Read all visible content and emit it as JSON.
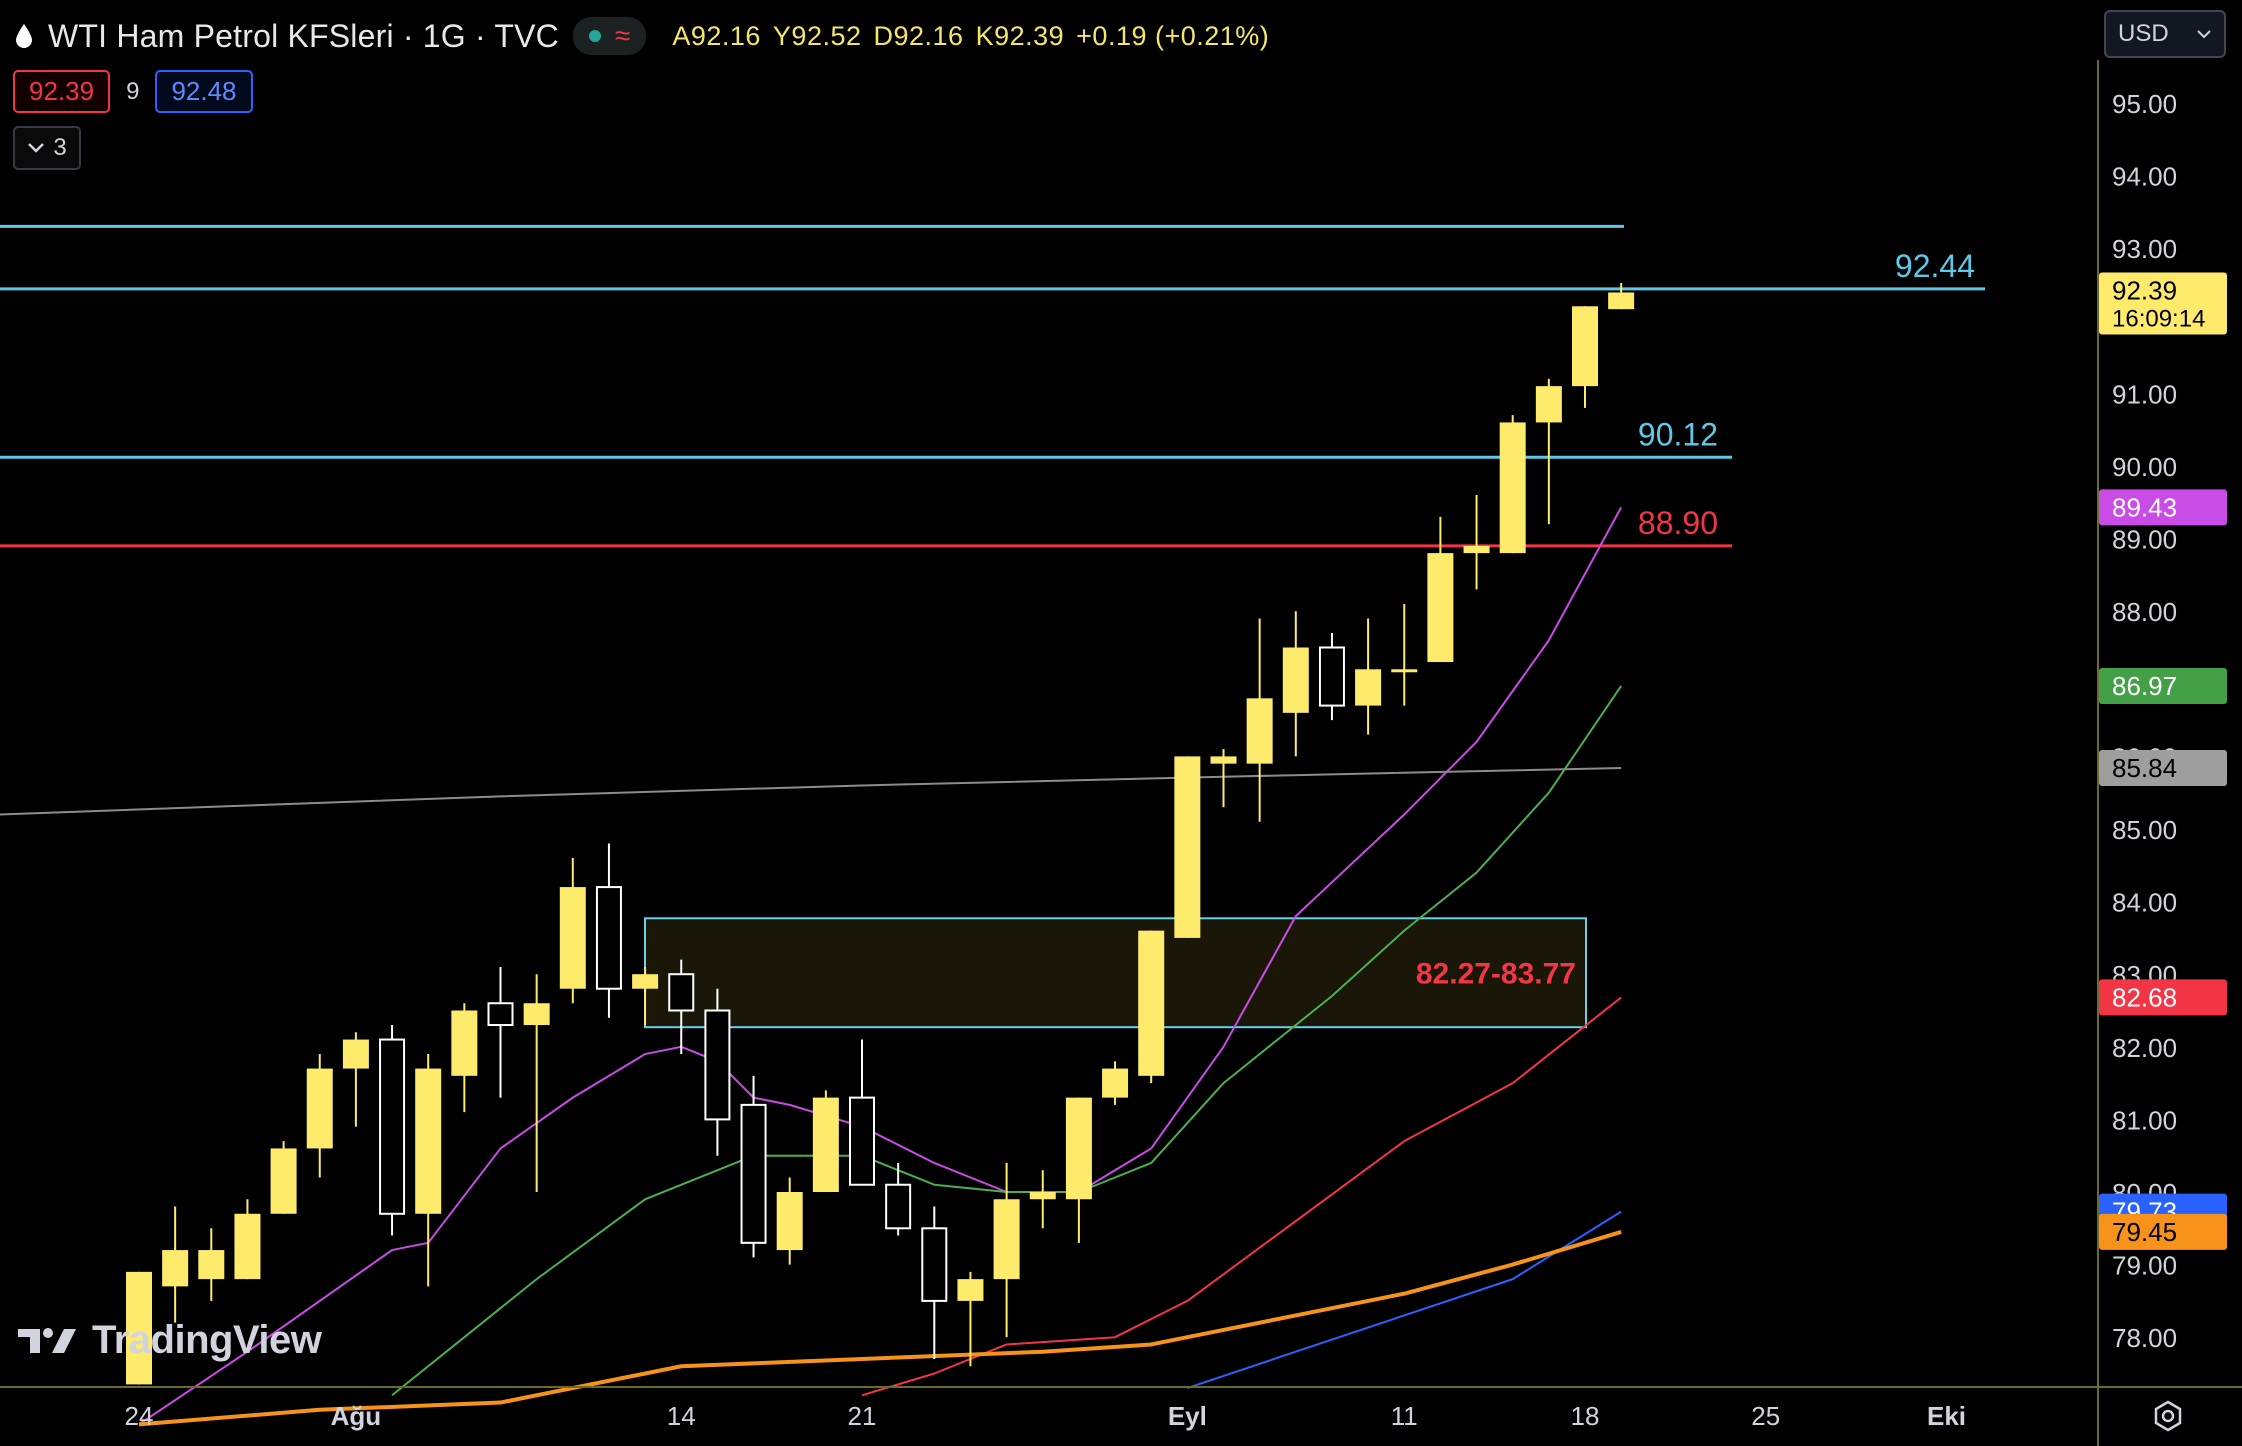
{
  "header": {
    "symbol_title": "WTI Ham Petrol KFSleri · 1G · TVC",
    "ohlc": {
      "open": "A92.16",
      "high": "Y92.52",
      "low": "D92.16",
      "close": "K92.39",
      "change": "+0.19 (+0.21%)"
    },
    "bid": "92.39",
    "spread": "9",
    "ask": "92.48",
    "indicators_count": "3",
    "currency": "USD"
  },
  "colors": {
    "candle_up": "#ffeb6b",
    "candle_down": "#ffffff",
    "axis_line": "#6b6a2a",
    "level_cyan": "#5ec8e8",
    "level_red": "#f23645",
    "zone_border": "#6ad0e8",
    "zone_fill": "#1a1608",
    "ma_magenta": "#c94ce6",
    "ma_green": "#4caf50",
    "ma_red": "#f23645",
    "ma_blue": "#2962ff",
    "ma_orange": "#f7931a",
    "ma_gray": "#8c8c8c"
  },
  "chart_data": {
    "type": "candlestick",
    "title": "WTI Ham Petrol KFSleri · 1G · TVC",
    "ylim": [
      77.35,
      95.4
    ],
    "y_ticks": [
      "95.00",
      "94.00",
      "93.00",
      "92.00",
      "91.00",
      "90.00",
      "89.00",
      "88.00",
      "87.00",
      "86.00",
      "85.00",
      "84.00",
      "83.00",
      "82.00",
      "81.00",
      "80.00",
      "79.00",
      "78.00"
    ],
    "x_tick_labels": [
      {
        "label": "24",
        "index": 0
      },
      {
        "label": "Ağu",
        "index": 6
      },
      {
        "label": "14",
        "index": 15
      },
      {
        "label": "21",
        "index": 20
      },
      {
        "label": "Eyl",
        "index": 29
      },
      {
        "label": "11",
        "index": 35
      },
      {
        "label": "18",
        "index": 40
      },
      {
        "label": "25",
        "index": 45
      },
      {
        "label": "Eki",
        "index": 50
      }
    ],
    "candles": [
      {
        "o": 77.35,
        "h": 78.9,
        "l": 77.35,
        "c": 78.9
      },
      {
        "o": 78.7,
        "h": 79.8,
        "l": 78.2,
        "c": 79.2
      },
      {
        "o": 78.8,
        "h": 79.5,
        "l": 78.5,
        "c": 79.2
      },
      {
        "o": 78.8,
        "h": 79.9,
        "l": 78.8,
        "c": 79.7
      },
      {
        "o": 79.7,
        "h": 80.7,
        "l": 79.7,
        "c": 80.6
      },
      {
        "o": 80.6,
        "h": 81.9,
        "l": 80.2,
        "c": 81.7
      },
      {
        "o": 81.7,
        "h": 82.2,
        "l": 80.9,
        "c": 82.1
      },
      {
        "o": 82.1,
        "h": 82.3,
        "l": 79.4,
        "c": 79.7
      },
      {
        "o": 79.7,
        "h": 81.9,
        "l": 78.7,
        "c": 81.7
      },
      {
        "o": 81.6,
        "h": 82.6,
        "l": 81.1,
        "c": 82.5
      },
      {
        "o": 82.6,
        "h": 83.1,
        "l": 81.3,
        "c": 82.3
      },
      {
        "o": 82.3,
        "h": 83.0,
        "l": 80.0,
        "c": 82.6
      },
      {
        "o": 82.8,
        "h": 84.6,
        "l": 82.6,
        "c": 84.2
      },
      {
        "o": 84.2,
        "h": 84.8,
        "l": 82.4,
        "c": 82.8
      },
      {
        "o": 82.8,
        "h": 83.1,
        "l": 82.3,
        "c": 83.0
      },
      {
        "o": 83.0,
        "h": 83.2,
        "l": 81.9,
        "c": 82.5
      },
      {
        "o": 82.5,
        "h": 82.8,
        "l": 80.5,
        "c": 81.0
      },
      {
        "o": 81.2,
        "h": 81.6,
        "l": 79.1,
        "c": 79.3
      },
      {
        "o": 79.2,
        "h": 80.2,
        "l": 79.0,
        "c": 80.0
      },
      {
        "o": 80.0,
        "h": 81.4,
        "l": 80.0,
        "c": 81.3
      },
      {
        "o": 81.3,
        "h": 82.1,
        "l": 80.1,
        "c": 80.1
      },
      {
        "o": 80.1,
        "h": 80.4,
        "l": 79.4,
        "c": 79.5
      },
      {
        "o": 79.5,
        "h": 79.8,
        "l": 77.7,
        "c": 78.5
      },
      {
        "o": 78.5,
        "h": 78.9,
        "l": 77.6,
        "c": 78.8
      },
      {
        "o": 78.8,
        "h": 80.4,
        "l": 78.0,
        "c": 79.9
      },
      {
        "o": 79.9,
        "h": 80.3,
        "l": 79.5,
        "c": 80.0
      },
      {
        "o": 79.9,
        "h": 81.3,
        "l": 79.3,
        "c": 81.3
      },
      {
        "o": 81.3,
        "h": 81.8,
        "l": 81.2,
        "c": 81.7
      },
      {
        "o": 81.6,
        "h": 83.6,
        "l": 81.5,
        "c": 83.6
      },
      {
        "o": 83.5,
        "h": 86.0,
        "l": 83.5,
        "c": 86.0
      },
      {
        "o": 85.9,
        "h": 86.1,
        "l": 85.3,
        "c": 86.0
      },
      {
        "o": 85.9,
        "h": 87.9,
        "l": 85.1,
        "c": 86.8
      },
      {
        "o": 86.6,
        "h": 88.0,
        "l": 86.0,
        "c": 87.5
      },
      {
        "o": 87.5,
        "h": 87.7,
        "l": 86.5,
        "c": 86.7
      },
      {
        "o": 86.7,
        "h": 87.9,
        "l": 86.3,
        "c": 87.2
      },
      {
        "o": 87.2,
        "h": 88.1,
        "l": 86.7,
        "c": 87.2
      },
      {
        "o": 87.3,
        "h": 89.3,
        "l": 87.3,
        "c": 88.8
      },
      {
        "o": 88.8,
        "h": 89.6,
        "l": 88.3,
        "c": 88.9
      },
      {
        "o": 88.8,
        "h": 90.7,
        "l": 88.8,
        "c": 90.6
      },
      {
        "o": 90.6,
        "h": 91.2,
        "l": 89.2,
        "c": 91.1
      },
      {
        "o": 91.1,
        "h": 92.2,
        "l": 90.8,
        "c": 92.2
      },
      {
        "o": 92.16,
        "h": 92.52,
        "l": 92.16,
        "c": 92.39
      }
    ],
    "moving_averages": [
      {
        "color": "magenta",
        "last_label": "89.43",
        "values": [
          [
            0,
            76.8
          ],
          [
            3,
            77.8
          ],
          [
            7,
            79.2
          ],
          [
            8,
            79.3
          ],
          [
            10,
            80.6
          ],
          [
            12,
            81.3
          ],
          [
            14,
            81.9
          ],
          [
            15,
            82.0
          ],
          [
            16,
            81.8
          ],
          [
            17,
            81.3
          ],
          [
            18,
            81.2
          ],
          [
            20,
            80.9
          ],
          [
            22,
            80.4
          ],
          [
            24,
            80.0
          ],
          [
            26,
            80.0
          ],
          [
            28,
            80.6
          ],
          [
            30,
            82.0
          ],
          [
            32,
            83.8
          ],
          [
            35,
            85.2
          ],
          [
            37,
            86.2
          ],
          [
            39,
            87.6
          ],
          [
            41,
            89.43
          ]
        ]
      },
      {
        "color": "green",
        "last_label": "86.97",
        "values": [
          [
            7,
            77.2
          ],
          [
            11,
            78.8
          ],
          [
            14,
            79.9
          ],
          [
            17,
            80.5
          ],
          [
            20,
            80.5
          ],
          [
            22,
            80.1
          ],
          [
            24,
            80.0
          ],
          [
            26,
            80.0
          ],
          [
            28,
            80.4
          ],
          [
            30,
            81.5
          ],
          [
            33,
            82.7
          ],
          [
            35,
            83.6
          ],
          [
            37,
            84.4
          ],
          [
            39,
            85.5
          ],
          [
            41,
            86.97
          ]
        ]
      },
      {
        "color": "red",
        "last_label": "82.68",
        "values": [
          [
            20,
            77.2
          ],
          [
            22,
            77.5
          ],
          [
            24,
            77.9
          ],
          [
            27,
            78.0
          ],
          [
            29,
            78.5
          ],
          [
            32,
            79.6
          ],
          [
            35,
            80.7
          ],
          [
            38,
            81.5
          ],
          [
            41,
            82.68
          ]
        ]
      },
      {
        "color": "blue",
        "last_label": "79.73",
        "values": [
          [
            29,
            77.3
          ],
          [
            32,
            77.8
          ],
          [
            35,
            78.3
          ],
          [
            38,
            78.8
          ],
          [
            41,
            79.73
          ]
        ]
      },
      {
        "color": "orange",
        "last_label": "79.45",
        "values": [
          [
            0,
            76.8
          ],
          [
            5,
            77.0
          ],
          [
            10,
            77.1
          ],
          [
            15,
            77.6
          ],
          [
            20,
            77.7
          ],
          [
            25,
            77.8
          ],
          [
            28,
            77.9
          ],
          [
            30,
            78.1
          ],
          [
            32,
            78.3
          ],
          [
            35,
            78.6
          ],
          [
            38,
            79.0
          ],
          [
            41,
            79.45
          ]
        ]
      },
      {
        "color": "gray",
        "last_label": "85.84",
        "values": [
          [
            -4,
            85.2
          ],
          [
            10,
            85.45
          ],
          [
            20,
            85.6
          ],
          [
            30,
            85.72
          ],
          [
            41,
            85.84
          ]
        ]
      }
    ],
    "horizontal_levels": [
      {
        "value": 93.3,
        "color": "cyan",
        "label": "",
        "end_index": 41
      },
      {
        "value": 92.44,
        "color": "cyan",
        "label": "92.44",
        "end_index": 44
      },
      {
        "value": 90.12,
        "color": "cyan",
        "label": "90.12",
        "end_index": 44
      },
      {
        "value": 88.9,
        "color": "red",
        "label": "88.90",
        "end_index": 44
      }
    ],
    "zone": {
      "low": 82.27,
      "high": 83.77,
      "start_index": 14,
      "end_index": 40,
      "label": "82.27-83.77"
    },
    "price_axis_badges": [
      {
        "value": 92.39,
        "label": "92.39",
        "sub": "16:09:14",
        "bg": "#ffeb6b",
        "fg": "#000000"
      },
      {
        "value": 89.43,
        "label": "89.43",
        "bg": "#c94ce6",
        "fg": "#ffffff"
      },
      {
        "value": 86.97,
        "label": "86.97",
        "bg": "#43a047",
        "fg": "#ffffff"
      },
      {
        "value": 85.84,
        "label": "85.84",
        "bg": "#9e9e9e",
        "fg": "#000000"
      },
      {
        "value": 82.68,
        "label": "82.68",
        "bg": "#f23645",
        "fg": "#ffffff"
      },
      {
        "value": 79.73,
        "label": "79.73",
        "bg": "#2962ff",
        "fg": "#ffffff"
      },
      {
        "value": 79.45,
        "label": "79.45",
        "bg": "#f7931a",
        "fg": "#000000"
      }
    ],
    "grid": false
  },
  "watermark": {
    "text": "TradingView"
  }
}
